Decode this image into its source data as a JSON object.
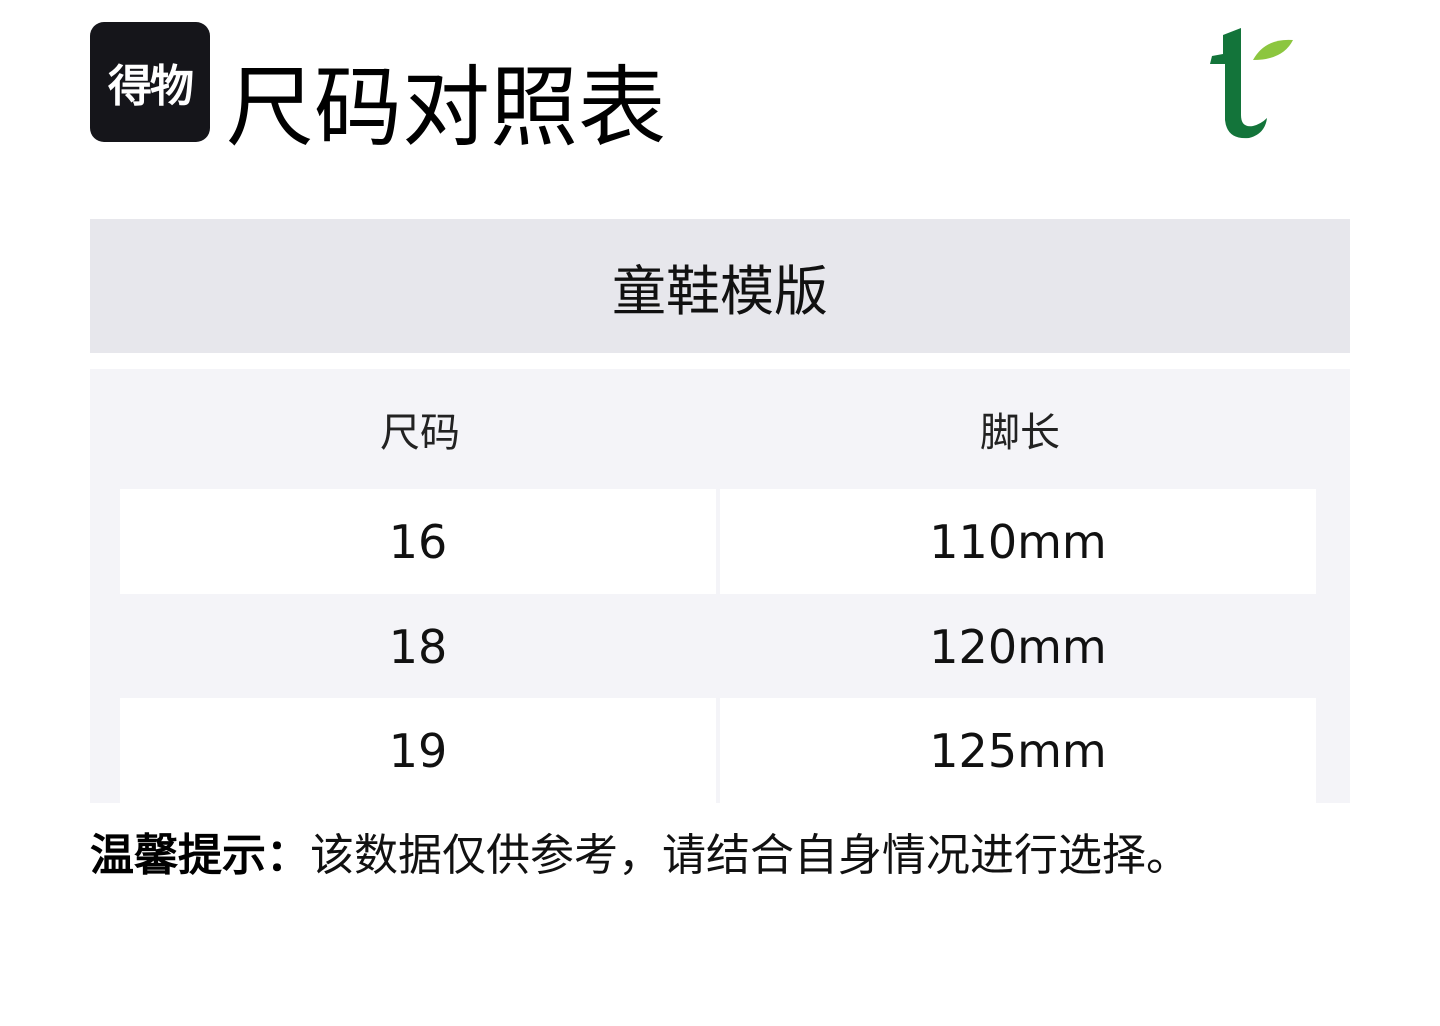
{
  "header": {
    "logo_text": "得物",
    "title": "尺码对照表",
    "brand_icon": "tea-leaf-t-logo",
    "brand_colors": [
      "#13743a",
      "#8cc63f"
    ]
  },
  "table": {
    "template": "童鞋模版",
    "columns": [
      "尺码",
      "脚长"
    ],
    "rows": [
      [
        "16",
        "110mm"
      ],
      [
        "18",
        "120mm"
      ],
      [
        "19",
        "125mm"
      ]
    ]
  },
  "note": {
    "label": "温馨提示：",
    "text": "该数据仅供参考，请结合自身情况进行选择。"
  }
}
